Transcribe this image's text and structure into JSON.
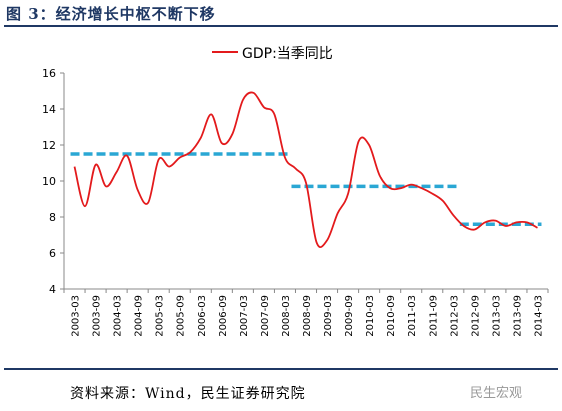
{
  "figure_title": "图 3：经济增长中枢不断下移",
  "source": "资料来源：Wind，民生证券研究院",
  "watermark": "民生宏观",
  "colors": {
    "line": "#e31a1c",
    "mean": "#2aa7d4",
    "title": "#1f3864"
  },
  "chart_data": {
    "type": "line",
    "title": "",
    "xlabel": "",
    "ylabel": "",
    "ylim": [
      4,
      16
    ],
    "yticks": [
      4,
      6,
      8,
      10,
      12,
      14,
      16
    ],
    "xtick_labels": [
      "2003-03",
      "2003-09",
      "2004-03",
      "2004-09",
      "2005-03",
      "2005-09",
      "2006-03",
      "2006-09",
      "2007-03",
      "2007-09",
      "2008-03",
      "2008-09",
      "2009-03",
      "2009-09",
      "2010-03",
      "2010-09",
      "2011-03",
      "2011-09",
      "2012-03",
      "2012-09",
      "2013-03",
      "2013-09",
      "2014-03"
    ],
    "legend": {
      "label": "GDP:当季同比",
      "position": "top-center"
    },
    "grid": false,
    "series": [
      {
        "name": "GDP:当季同比",
        "x": [
          "2003-03",
          "2003-06",
          "2003-09",
          "2003-12",
          "2004-03",
          "2004-06",
          "2004-09",
          "2004-12",
          "2005-03",
          "2005-06",
          "2005-09",
          "2005-12",
          "2006-03",
          "2006-06",
          "2006-09",
          "2006-12",
          "2007-03",
          "2007-06",
          "2007-09",
          "2007-12",
          "2008-03",
          "2008-06",
          "2008-09",
          "2008-12",
          "2009-03",
          "2009-06",
          "2009-09",
          "2009-12",
          "2010-03",
          "2010-06",
          "2010-09",
          "2010-12",
          "2011-03",
          "2011-06",
          "2011-09",
          "2011-12",
          "2012-03",
          "2012-06",
          "2012-09",
          "2012-12",
          "2013-03",
          "2013-06",
          "2013-09",
          "2013-12",
          "2014-03"
        ],
        "values": [
          10.8,
          8.6,
          10.9,
          9.7,
          10.5,
          11.4,
          9.5,
          8.8,
          11.2,
          10.8,
          11.3,
          11.6,
          12.4,
          13.7,
          12.1,
          12.6,
          14.5,
          14.9,
          14.1,
          13.7,
          11.3,
          10.7,
          9.9,
          6.6,
          6.7,
          8.2,
          9.3,
          12.2,
          12.0,
          10.3,
          9.6,
          9.6,
          9.8,
          9.6,
          9.3,
          8.9,
          8.1,
          7.5,
          7.3,
          7.7,
          7.8,
          7.5,
          7.7,
          7.7,
          7.4
        ]
      }
    ],
    "mean_lines": [
      {
        "start": "2003-03",
        "end": "2008-03",
        "value": 11.5
      },
      {
        "start": "2008-06",
        "end": "2012-03",
        "value": 9.7
      },
      {
        "start": "2012-06",
        "end": "2014-03",
        "value": 7.6
      }
    ]
  }
}
